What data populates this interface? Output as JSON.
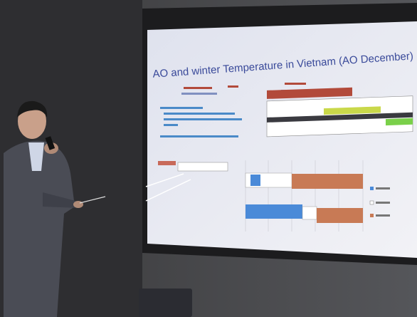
{
  "slide": {
    "title": "AO and winter Temperature in Vietnam (AO December)"
  }
}
